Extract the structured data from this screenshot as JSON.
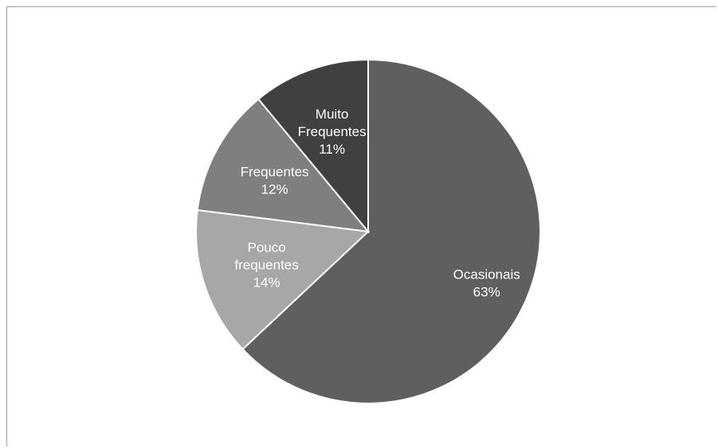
{
  "chart_data": {
    "type": "pie",
    "title": "",
    "start_angle_deg": 0,
    "direction": "clockwise",
    "legend": "none",
    "slices": [
      {
        "label_lines": [
          "Ocasionais"
        ],
        "value": 63,
        "value_label": "63%",
        "color": "#5f5f5f"
      },
      {
        "label_lines": [
          "Pouco",
          "frequentes"
        ],
        "value": 14,
        "value_label": "14%",
        "color": "#a7a7a7"
      },
      {
        "label_lines": [
          "Frequentes"
        ],
        "value": 12,
        "value_label": "12%",
        "color": "#7f7f7f"
      },
      {
        "label_lines": [
          "Muito",
          "Frequentes"
        ],
        "value": 11,
        "value_label": "11%",
        "color": "#404040"
      }
    ]
  }
}
